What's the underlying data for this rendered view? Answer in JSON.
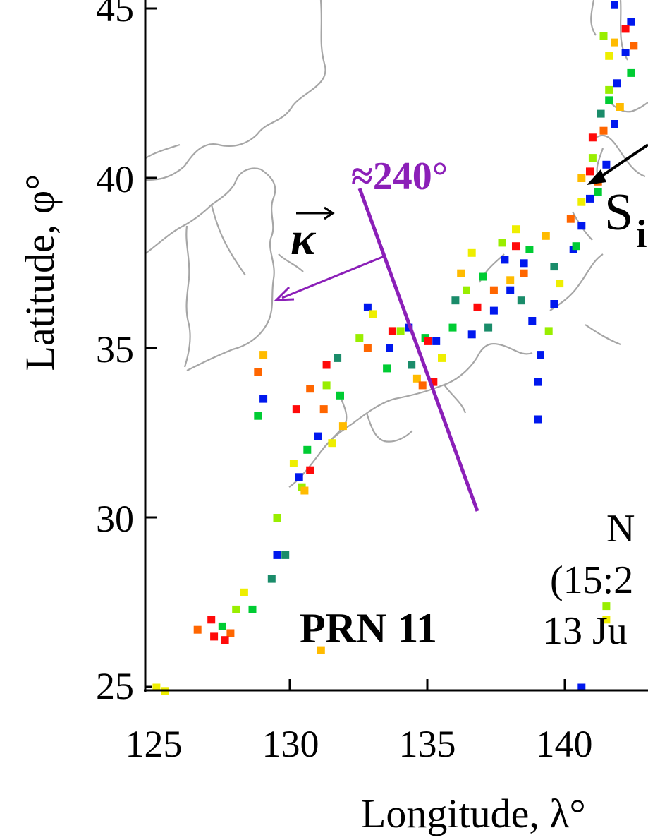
{
  "chart_data": {
    "type": "scatter",
    "title": "",
    "xlabel": "Longitude, λ°",
    "ylabel": "Latitude, φ°",
    "xlim": [
      124.8,
      143
    ],
    "ylim": [
      24.2,
      45.3
    ],
    "xticks": [
      "125",
      "130",
      "135",
      "140"
    ],
    "yticks": [
      "25",
      "30",
      "35",
      "40",
      "45"
    ],
    "grid": false,
    "annotations": {
      "satellite": "PRN 11",
      "angle": "≈240°",
      "wave_vector_symbol": "κ",
      "partial_label_s": "S",
      "partial_label_i": "i",
      "partial_n": "N",
      "partial_time": "(15:2",
      "partial_date": "13 Ju"
    },
    "palette": [
      "#0018ee",
      "#1a8c6a",
      "#00cc33",
      "#99ee00",
      "#eeee00",
      "#ffbb00",
      "#ff6600",
      "#ff0a0a"
    ],
    "series": [
      {
        "color": "#0018ee",
        "points": [
          [
            132.8,
            36.2
          ],
          [
            134.3,
            35.6
          ],
          [
            135.3,
            35.2
          ],
          [
            136.6,
            35.4
          ],
          [
            137.4,
            36.1
          ],
          [
            138.0,
            36.7
          ],
          [
            138.5,
            37.5
          ],
          [
            138.8,
            35.8
          ],
          [
            139.1,
            34.8
          ],
          [
            139.0,
            34.0
          ],
          [
            140.3,
            37.9
          ],
          [
            140.6,
            38.6
          ],
          [
            140.9,
            39.4
          ],
          [
            141.5,
            40.4
          ],
          [
            141.8,
            41.6
          ],
          [
            141.9,
            42.8
          ],
          [
            142.2,
            43.7
          ],
          [
            142.4,
            44.6
          ],
          [
            141.8,
            45.1
          ],
          [
            129.0,
            33.5
          ],
          [
            130.3,
            31.2
          ],
          [
            131.0,
            32.4
          ],
          [
            129.5,
            28.9
          ],
          [
            140.6,
            25.0
          ],
          [
            139.0,
            32.9
          ],
          [
            133.6,
            35.0
          ],
          [
            137.8,
            37.6
          ],
          [
            139.6,
            36.3
          ]
        ]
      },
      {
        "color": "#1a8c6a",
        "points": [
          [
            129.3,
            28.2
          ],
          [
            129.8,
            28.9
          ],
          [
            134.4,
            34.5
          ],
          [
            137.2,
            35.6
          ],
          [
            138.4,
            36.4
          ],
          [
            139.6,
            37.4
          ],
          [
            141.3,
            41.9
          ],
          [
            131.7,
            34.7
          ],
          [
            136.0,
            36.4
          ]
        ]
      },
      {
        "color": "#00cc33",
        "points": [
          [
            127.5,
            26.8
          ],
          [
            128.6,
            27.3
          ],
          [
            130.6,
            32.0
          ],
          [
            131.8,
            33.6
          ],
          [
            133.5,
            34.4
          ],
          [
            135.9,
            35.6
          ],
          [
            137.0,
            37.1
          ],
          [
            138.7,
            37.9
          ],
          [
            140.4,
            38.0
          ],
          [
            141.2,
            39.6
          ],
          [
            141.6,
            42.3
          ],
          [
            142.4,
            43.1
          ],
          [
            128.8,
            33.0
          ],
          [
            134.9,
            35.3
          ]
        ]
      },
      {
        "color": "#99ee00",
        "points": [
          [
            128.0,
            27.3
          ],
          [
            129.5,
            30.0
          ],
          [
            130.4,
            30.9
          ],
          [
            131.3,
            33.9
          ],
          [
            132.5,
            35.3
          ],
          [
            134.0,
            35.5
          ],
          [
            136.4,
            36.7
          ],
          [
            137.7,
            38.1
          ],
          [
            139.4,
            35.5
          ],
          [
            141.0,
            40.6
          ],
          [
            141.6,
            42.6
          ],
          [
            141.4,
            44.2
          ],
          [
            141.5,
            27.4
          ]
        ]
      },
      {
        "color": "#eeee00",
        "points": [
          [
            125.1,
            25.0
          ],
          [
            125.4,
            24.9
          ],
          [
            128.3,
            27.8
          ],
          [
            130.1,
            31.6
          ],
          [
            131.5,
            32.2
          ],
          [
            133.0,
            36.0
          ],
          [
            135.5,
            34.7
          ],
          [
            136.6,
            37.8
          ],
          [
            138.2,
            38.5
          ],
          [
            140.6,
            39.3
          ],
          [
            141.6,
            43.6
          ],
          [
            141.5,
            27.0
          ],
          [
            139.8,
            36.9
          ]
        ]
      },
      {
        "color": "#ffbb00",
        "points": [
          [
            129.0,
            34.8
          ],
          [
            130.5,
            30.8
          ],
          [
            131.1,
            26.1
          ],
          [
            131.9,
            32.7
          ],
          [
            134.6,
            34.1
          ],
          [
            136.2,
            37.2
          ],
          [
            139.3,
            38.3
          ],
          [
            140.6,
            40.0
          ],
          [
            141.8,
            44.0
          ],
          [
            142.0,
            42.1
          ],
          [
            138.0,
            37.0
          ]
        ]
      },
      {
        "color": "#ff6600",
        "points": [
          [
            126.6,
            26.7
          ],
          [
            127.8,
            26.6
          ],
          [
            128.8,
            34.3
          ],
          [
            130.7,
            33.8
          ],
          [
            132.8,
            35.0
          ],
          [
            134.8,
            33.9
          ],
          [
            137.4,
            36.7
          ],
          [
            138.5,
            37.2
          ],
          [
            140.2,
            38.8
          ],
          [
            141.2,
            39.9
          ],
          [
            141.4,
            41.4
          ],
          [
            142.5,
            43.9
          ],
          [
            131.2,
            33.2
          ]
        ]
      },
      {
        "color": "#ff0a0a",
        "points": [
          [
            127.1,
            27.0
          ],
          [
            127.2,
            26.5
          ],
          [
            127.6,
            26.4
          ],
          [
            130.2,
            33.2
          ],
          [
            131.3,
            34.5
          ],
          [
            133.7,
            35.5
          ],
          [
            135.0,
            35.2
          ],
          [
            135.2,
            34.0
          ],
          [
            136.8,
            36.2
          ],
          [
            138.2,
            38.0
          ],
          [
            140.9,
            40.2
          ],
          [
            141.0,
            41.2
          ],
          [
            142.2,
            44.4
          ],
          [
            130.7,
            31.4
          ]
        ]
      }
    ]
  }
}
